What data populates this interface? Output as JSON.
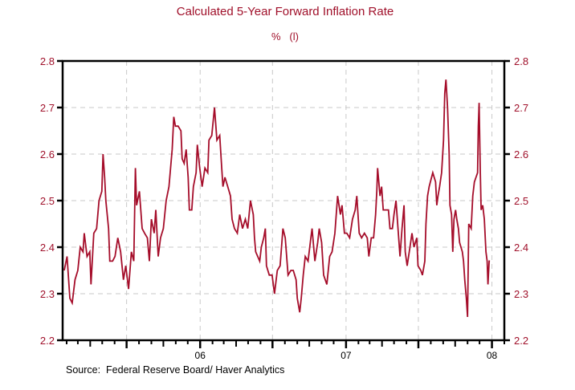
{
  "chart_data": {
    "type": "line",
    "title": "Calculated 5-Year Forward Inflation Rate",
    "subtitle": "%   (l)",
    "source": "Source:  Federal Reserve Board/ Haver Analytics",
    "xlabel": "",
    "ylabel": "",
    "xlim": [
      "2005-01-22",
      "2008-02-01"
    ],
    "ylim": [
      2.2,
      2.8
    ],
    "yticks": [
      2.2,
      2.3,
      2.4,
      2.5,
      2.6,
      2.7,
      2.8
    ],
    "ytick_labels": [
      "2.2",
      "2.3",
      "2.4",
      "2.5",
      "2.6",
      "2.7",
      "2.8"
    ],
    "xticks": [
      {
        "date": "2006-01-01",
        "label": "06"
      },
      {
        "date": "2007-01-01",
        "label": "07"
      },
      {
        "date": "2008-01-01",
        "label": "08"
      }
    ],
    "grid": true,
    "grid_style": "dashed",
    "line_color": "#a50d2a",
    "label_color": "#a0102a",
    "x": [
      "2005-01-26",
      "2005-02-02",
      "2005-02-09",
      "2005-02-15",
      "2005-02-22",
      "2005-03-01",
      "2005-03-07",
      "2005-03-14",
      "2005-03-17",
      "2005-03-24",
      "2005-03-31",
      "2005-04-03",
      "2005-04-10",
      "2005-04-17",
      "2005-04-23",
      "2005-04-30",
      "2005-05-03",
      "2005-05-07",
      "2005-05-10",
      "2005-05-17",
      "2005-05-20",
      "2005-05-27",
      "2005-06-02",
      "2005-06-09",
      "2005-06-16",
      "2005-06-23",
      "2005-06-29",
      "2005-07-06",
      "2005-07-13",
      "2005-07-19",
      "2005-07-23",
      "2005-07-26",
      "2005-08-02",
      "2005-08-09",
      "2005-08-15",
      "2005-08-22",
      "2005-08-27",
      "2005-09-01",
      "2005-09-08",
      "2005-09-12",
      "2005-09-18",
      "2005-09-24",
      "2005-10-01",
      "2005-10-08",
      "2005-10-15",
      "2005-10-18",
      "2005-10-23",
      "2005-10-27",
      "2005-10-31",
      "2005-11-07",
      "2005-11-14",
      "2005-11-17",
      "2005-11-22",
      "2005-11-27",
      "2005-12-02",
      "2005-12-05",
      "2005-12-11",
      "2005-12-15",
      "2005-12-22",
      "2005-12-25",
      "2005-12-31",
      "2006-01-06",
      "2006-01-13",
      "2006-01-20",
      "2006-01-23",
      "2006-01-30",
      "2006-02-06",
      "2006-02-12",
      "2006-02-19",
      "2006-02-24",
      "2006-02-27",
      "2006-03-04",
      "2006-03-11",
      "2006-03-18",
      "2006-03-22",
      "2006-03-28",
      "2006-04-04",
      "2006-04-10",
      "2006-04-17",
      "2006-04-24",
      "2006-04-30",
      "2006-05-07",
      "2006-05-14",
      "2006-05-17",
      "2006-05-20",
      "2006-05-30",
      "2006-06-03",
      "2006-06-09",
      "2006-06-13",
      "2006-06-16",
      "2006-06-23",
      "2006-06-30",
      "2006-07-06",
      "2006-07-13",
      "2006-07-20",
      "2006-07-27",
      "2006-08-02",
      "2006-08-09",
      "2006-08-16",
      "2006-08-22",
      "2006-08-29",
      "2006-09-01",
      "2006-09-07",
      "2006-09-11",
      "2006-09-16",
      "2006-09-21",
      "2006-09-28",
      "2006-10-05",
      "2006-10-08",
      "2006-10-15",
      "2006-10-22",
      "2006-10-26",
      "2006-11-01",
      "2006-11-06",
      "2006-11-14",
      "2006-11-21",
      "2006-11-27",
      "2006-12-04",
      "2006-12-11",
      "2006-12-18",
      "2006-12-22",
      "2006-12-28",
      "2007-01-03",
      "2007-01-10",
      "2007-01-17",
      "2007-01-24",
      "2007-01-28",
      "2007-02-03",
      "2007-02-09",
      "2007-02-16",
      "2007-02-23",
      "2007-02-27",
      "2007-03-05",
      "2007-03-11",
      "2007-03-16",
      "2007-03-19",
      "2007-03-21",
      "2007-03-27",
      "2007-03-31",
      "2007-04-04",
      "2007-04-12",
      "2007-04-17",
      "2007-04-21",
      "2007-04-27",
      "2007-05-01",
      "2007-05-06",
      "2007-05-11",
      "2007-05-16",
      "2007-05-21",
      "2007-05-26",
      "2007-05-29",
      "2007-06-03",
      "2007-06-10",
      "2007-06-15",
      "2007-06-20",
      "2007-06-27",
      "2007-06-30",
      "2007-07-07",
      "2007-07-11",
      "2007-07-17",
      "2007-07-20",
      "2007-07-24",
      "2007-07-28",
      "2007-08-03",
      "2007-08-06",
      "2007-08-13",
      "2007-08-16",
      "2007-08-19",
      "2007-08-23",
      "2007-08-28",
      "2007-09-02",
      "2007-09-05",
      "2007-09-08",
      "2007-09-12",
      "2007-09-16",
      "2007-09-18",
      "2007-09-22",
      "2007-09-25",
      "2007-09-28",
      "2007-10-02",
      "2007-10-05",
      "2007-10-09",
      "2007-10-12",
      "2007-10-19",
      "2007-10-22",
      "2007-10-25",
      "2007-10-29",
      "2007-11-01",
      "2007-11-04",
      "2007-11-10",
      "2007-11-14",
      "2007-11-18",
      "2007-11-22",
      "2007-11-26",
      "2007-11-28",
      "2007-11-30",
      "2007-12-03",
      "2007-12-05",
      "2007-12-09",
      "2007-12-13",
      "2007-12-17",
      "2007-12-20",
      "2007-12-22",
      "2007-12-25",
      "2007-12-27"
    ],
    "values": [
      2.35,
      2.38,
      2.29,
      2.28,
      2.33,
      2.35,
      2.4,
      2.39,
      2.43,
      2.38,
      2.39,
      2.32,
      2.43,
      2.44,
      2.5,
      2.52,
      2.6,
      2.55,
      2.5,
      2.44,
      2.37,
      2.37,
      2.38,
      2.42,
      2.39,
      2.33,
      2.36,
      2.31,
      2.39,
      2.37,
      2.57,
      2.49,
      2.52,
      2.44,
      2.43,
      2.42,
      2.37,
      2.46,
      2.43,
      2.48,
      2.38,
      2.42,
      2.44,
      2.5,
      2.53,
      2.56,
      2.61,
      2.68,
      2.66,
      2.66,
      2.65,
      2.59,
      2.58,
      2.61,
      2.55,
      2.48,
      2.48,
      2.53,
      2.56,
      2.62,
      2.57,
      2.53,
      2.57,
      2.56,
      2.63,
      2.64,
      2.7,
      2.63,
      2.64,
      2.57,
      2.53,
      2.55,
      2.53,
      2.51,
      2.46,
      2.44,
      2.43,
      2.47,
      2.44,
      2.46,
      2.44,
      2.5,
      2.47,
      2.42,
      2.39,
      2.37,
      2.4,
      2.42,
      2.44,
      2.36,
      2.34,
      2.34,
      2.3,
      2.35,
      2.36,
      2.44,
      2.42,
      2.34,
      2.35,
      2.35,
      2.33,
      2.29,
      2.26,
      2.29,
      2.34,
      2.38,
      2.37,
      2.42,
      2.44,
      2.37,
      2.41,
      2.44,
      2.41,
      2.34,
      2.32,
      2.38,
      2.39,
      2.43,
      2.51,
      2.47,
      2.49,
      2.43,
      2.43,
      2.42,
      2.46,
      2.48,
      2.51,
      2.43,
      2.42,
      2.43,
      2.42,
      2.38,
      2.42,
      2.42,
      2.47,
      2.52,
      2.57,
      2.51,
      2.53,
      2.48,
      2.48,
      2.48,
      2.44,
      2.44,
      2.47,
      2.5,
      2.44,
      2.38,
      2.44,
      2.49,
      2.39,
      2.36,
      2.4,
      2.43,
      2.4,
      2.42,
      2.36,
      2.35,
      2.34,
      2.37,
      2.45,
      2.51,
      2.53,
      2.55,
      2.56,
      2.54,
      2.49,
      2.51,
      2.53,
      2.56,
      2.63,
      2.73,
      2.76,
      2.7,
      2.6,
      2.49,
      2.47,
      2.39,
      2.46,
      2.48,
      2.46,
      2.44,
      2.41,
      2.39,
      2.37,
      2.33,
      2.29,
      2.25,
      2.45,
      2.44,
      2.51,
      2.54,
      2.55,
      2.56,
      2.66,
      2.71,
      2.56,
      2.48,
      2.49,
      2.46,
      2.39,
      2.37,
      2.32,
      2.37,
      2.37
    ]
  }
}
